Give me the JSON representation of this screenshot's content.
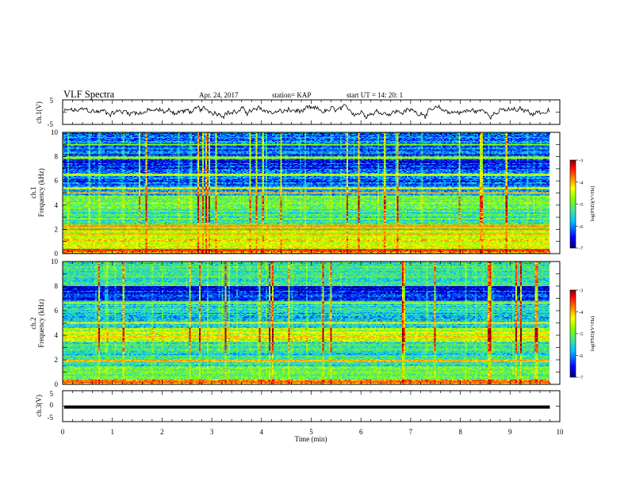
{
  "header": {
    "title": "VLF Spectra",
    "date": "Apr. 24, 2017",
    "station": "station= KAP",
    "start": "start  UT =   14: 20: 1"
  },
  "chart_data": [
    {
      "type": "line",
      "name": "ch1-waveform",
      "ylabel": "ch.1(V)",
      "ylim": [
        -5,
        5
      ],
      "yticks": [
        "5",
        "-5"
      ],
      "xlim": [
        0,
        10
      ],
      "approx_level": 0.3,
      "approx_noise_amplitude": 1.5,
      "data_extent_min": 9.8
    },
    {
      "type": "heatmap",
      "name": "ch1-spectrogram",
      "ylabel": "ch.1\nFrequency (kHz)",
      "ylim": [
        0,
        10
      ],
      "yticks": [
        "0",
        "2",
        "4",
        "6",
        "8",
        "10"
      ],
      "xlim": [
        0,
        10
      ],
      "colorbar": {
        "label": "log(PSD)(V²/Hz)",
        "ticks": [
          "-3",
          "-4",
          "-5",
          "-6",
          "-7"
        ],
        "range": [
          -7,
          -3
        ]
      },
      "bands": [
        {
          "f": [
            0.0,
            0.4
          ],
          "level": -4.0
        },
        {
          "f": [
            0.4,
            1.3
          ],
          "level": -4.6
        },
        {
          "f": [
            1.3,
            2.4
          ],
          "level": -4.9
        },
        {
          "f": [
            2.4,
            3.6
          ],
          "level": -5.4
        },
        {
          "f": [
            3.6,
            4.8
          ],
          "level": -5.2
        },
        {
          "f": [
            4.8,
            5.6
          ],
          "level": -5.9
        },
        {
          "f": [
            5.6,
            7.0
          ],
          "level": -6.3
        },
        {
          "f": [
            7.0,
            8.2
          ],
          "level": -6.5
        },
        {
          "f": [
            8.2,
            10.0
          ],
          "level": -6.2
        }
      ],
      "tones": [
        {
          "f": 0.3,
          "level": -3.8
        },
        {
          "f": 1.6,
          "level": -4.2
        },
        {
          "f": 2.0,
          "level": -4.0
        },
        {
          "f": 2.3,
          "level": -4.1
        },
        {
          "f": 5.0,
          "level": -4.2
        },
        {
          "f": 5.4,
          "level": -4.5
        },
        {
          "f": 6.5,
          "level": -4.8
        },
        {
          "f": 7.9,
          "level": -4.9
        },
        {
          "f": 9.0,
          "level": -5.0
        }
      ]
    },
    {
      "type": "heatmap",
      "name": "ch2-spectrogram",
      "ylabel": "ch.2\nFrequency (kHz)",
      "ylim": [
        0,
        10
      ],
      "yticks": [
        "0",
        "2",
        "4",
        "6",
        "8",
        "10"
      ],
      "xlim": [
        0,
        10
      ],
      "colorbar": {
        "label": "log(PSD)(V²/Hz)",
        "ticks": [
          "-3",
          "-4",
          "-5",
          "-6",
          "-7"
        ],
        "range": [
          -7,
          -3
        ]
      },
      "bands": [
        {
          "f": [
            0.0,
            0.4
          ],
          "level": -4.1
        },
        {
          "f": [
            0.4,
            1.5
          ],
          "level": -5.2
        },
        {
          "f": [
            1.5,
            2.6
          ],
          "level": -5.6
        },
        {
          "f": [
            2.6,
            3.5
          ],
          "level": -5.5
        },
        {
          "f": [
            3.5,
            4.6
          ],
          "level": -4.8
        },
        {
          "f": [
            4.6,
            5.8
          ],
          "level": -5.8
        },
        {
          "f": [
            5.8,
            6.8
          ],
          "level": -5.6
        },
        {
          "f": [
            6.8,
            8.0
          ],
          "level": -6.5
        },
        {
          "f": [
            8.0,
            10.0
          ],
          "level": -5.6
        }
      ],
      "tones": [
        {
          "f": 0.2,
          "level": -3.9
        },
        {
          "f": 1.9,
          "level": -4.2
        },
        {
          "f": 3.9,
          "level": -4.3
        },
        {
          "f": 4.2,
          "level": -4.4
        },
        {
          "f": 5.0,
          "level": -4.6
        },
        {
          "f": 6.6,
          "level": -4.9
        }
      ]
    },
    {
      "type": "line",
      "name": "ch3-waveform",
      "ylabel": "ch.3(V)",
      "ylim": [
        -5,
        5
      ],
      "yticks": [
        "5",
        "0",
        "-5"
      ],
      "xlim": [
        0,
        10
      ],
      "xlabel": "Time  (min)",
      "xticks": [
        "0",
        "1",
        "2",
        "3",
        "4",
        "5",
        "6",
        "7",
        "8",
        "9",
        "10"
      ],
      "constant_value": -0.3,
      "data_extent_min": 9.8
    }
  ],
  "colors": {
    "axis": "#000000",
    "colormap": [
      "#00007f",
      "#0000ff",
      "#00bfff",
      "#40e0a0",
      "#7fff00",
      "#ffff00",
      "#ff8000",
      "#ff0000",
      "#7f0000"
    ]
  }
}
